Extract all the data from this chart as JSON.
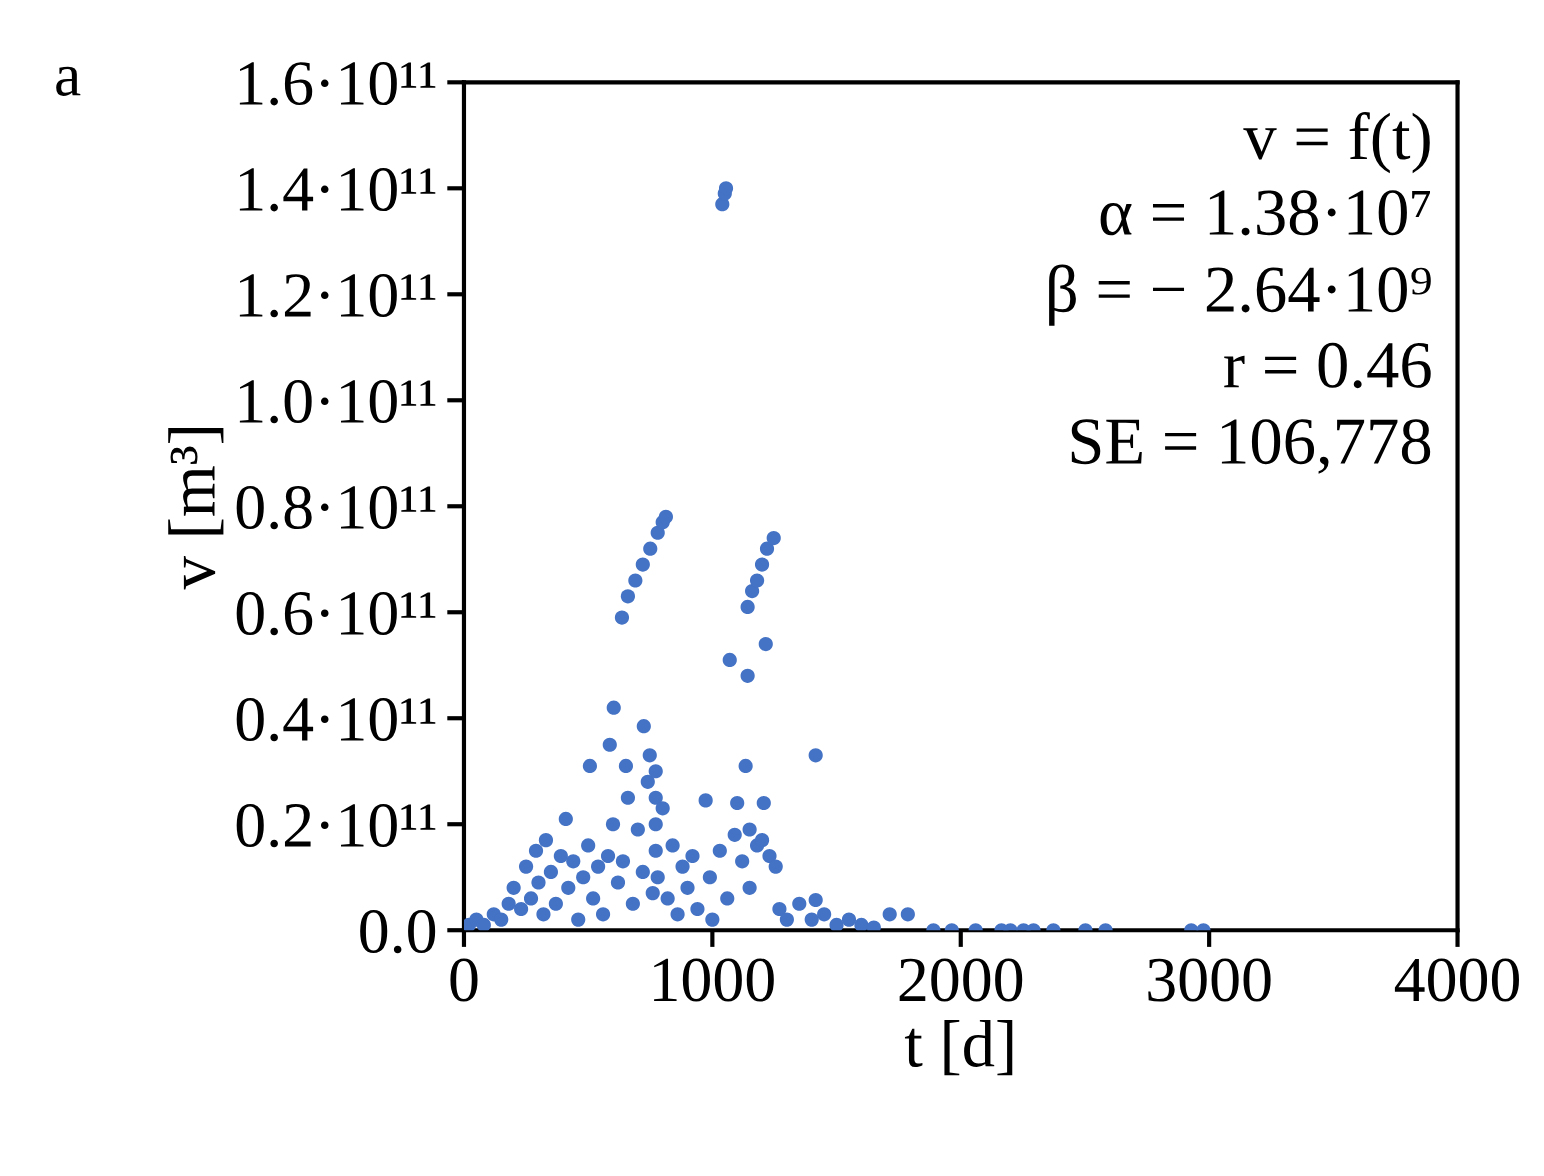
{
  "chart_data": {
    "type": "scatter",
    "xlabel": "t [d]",
    "ylabel": "v [m³]",
    "annotations": [
      "a",
      "v = f(t)",
      "α = 1.38·10⁷",
      "β = − 2.64·10⁹",
      "r = 0.46",
      "SE = 106,778"
    ],
    "xlim": [
      0,
      4000
    ],
    "xticks": [
      0,
      1000,
      2000,
      3000,
      4000
    ],
    "ylim": [
      0,
      160000000000.0
    ],
    "yticks": [
      {
        "value": 0,
        "label": "0.0"
      },
      {
        "value": 20000000000.0,
        "label": "0.2·10¹¹"
      },
      {
        "value": 40000000000.0,
        "label": "0.4·10¹¹"
      },
      {
        "value": 60000000000.0,
        "label": "0.6·10¹¹"
      },
      {
        "value": 80000000000.0,
        "label": "0.8·10¹¹"
      },
      {
        "value": 100000000000.0,
        "label": "1.0·10¹¹"
      },
      {
        "value": 120000000000.0,
        "label": "1.2·10¹¹"
      },
      {
        "value": 140000000000.0,
        "label": "1.4·10¹¹"
      },
      {
        "value": 160000000000.0,
        "label": "1.6·10¹¹"
      }
    ],
    "grid": false,
    "marker": "circle",
    "series": [
      {
        "color": "#4472c4",
        "x": [
          20,
          50,
          80,
          120,
          150,
          180,
          200,
          230,
          250,
          270,
          290,
          300,
          320,
          330,
          350,
          370,
          390,
          410,
          420,
          440,
          460,
          480,
          500,
          520,
          540,
          560,
          580,
          600,
          620,
          640,
          660,
          680,
          700,
          720,
          740,
          760,
          772,
          772,
          772,
          772,
          780,
          800,
          820,
          840,
          860,
          880,
          900,
          920,
          940,
          973,
          990,
          1000,
          1030,
          1060,
          1090,
          1120,
          1150,
          1180,
          1207,
          1230,
          1255,
          1270,
          1300,
          1350,
          1400,
          1416,
          1450,
          1500,
          1550,
          1600,
          1650,
          1714,
          1787,
          1890,
          1964,
          2060,
          2164,
          2200,
          2253,
          2293,
          2373,
          2502,
          2583,
          2928,
          2977,
          507,
          587,
          603,
          652,
          724,
          748,
          1134,
          1416,
          1070,
          1142,
          1215,
          1100,
          1150,
          1200,
          636,
          660,
          690,
          720,
          750,
          780,
          800,
          813,
          1142,
          1160,
          1180,
          1200,
          1220,
          1247,
          1040,
          1050,
          1055
        ],
        "values": [
          1000000000.0,
          2000000000.0,
          1000000000.0,
          3000000000.0,
          2000000000.0,
          5000000000.0,
          8000000000.0,
          4000000000.0,
          12000000000.0,
          6000000000.0,
          15000000000.0,
          9000000000.0,
          3000000000.0,
          17000000000.0,
          11000000000.0,
          5000000000.0,
          14000000000.0,
          21000000000.0,
          8000000000.0,
          13000000000.0,
          2000000000.0,
          10000000000.0,
          16000000000.0,
          6000000000.0,
          12000000000.0,
          3000000000.0,
          14000000000.0,
          20000000000.0,
          9000000000.0,
          13000000000.0,
          25000000000.0,
          5000000000.0,
          19000000000.0,
          11000000000.0,
          28000000000.0,
          7000000000.0,
          30000000000.0,
          25000000000.0,
          20000000000.0,
          15000000000.0,
          10000000000.0,
          23000000000.0,
          6000000000.0,
          16000000000.0,
          3000000000.0,
          12000000000.0,
          8000000000.0,
          14000000000.0,
          4000000000.0,
          24500000000.0,
          10000000000.0,
          2000000000.0,
          15000000000.0,
          6000000000.0,
          18000000000.0,
          13000000000.0,
          8000000000.0,
          16000000000.0,
          24000000000.0,
          14000000000.0,
          12000000000.0,
          4000000000.0,
          2000000000.0,
          5000000000.0,
          2000000000.0,
          5700000000.0,
          3000000000.0,
          1000000000.0,
          2000000000.0,
          1000000000.0,
          500000000.0,
          3000000000.0,
          3000000000.0,
          0,
          0,
          0,
          0,
          0,
          0,
          0,
          0,
          0,
          0,
          0,
          0,
          31000000000.0,
          35000000000.0,
          42000000000.0,
          31000000000.0,
          38500000000.0,
          33000000000.0,
          31000000000.0,
          33000000000.0,
          51000000000.0,
          48000000000.0,
          54000000000.0,
          24000000000.0,
          19000000000.0,
          17000000000.0,
          59000000000.0,
          63000000000.0,
          66000000000.0,
          69000000000.0,
          72000000000.0,
          75000000000.0,
          77000000000.0,
          78000000000.0,
          61000000000.0,
          64000000000.0,
          66000000000.0,
          69000000000.0,
          72000000000.0,
          74000000000.0,
          137000000000.0,
          139000000000.0,
          140000000000.0
        ]
      }
    ]
  }
}
